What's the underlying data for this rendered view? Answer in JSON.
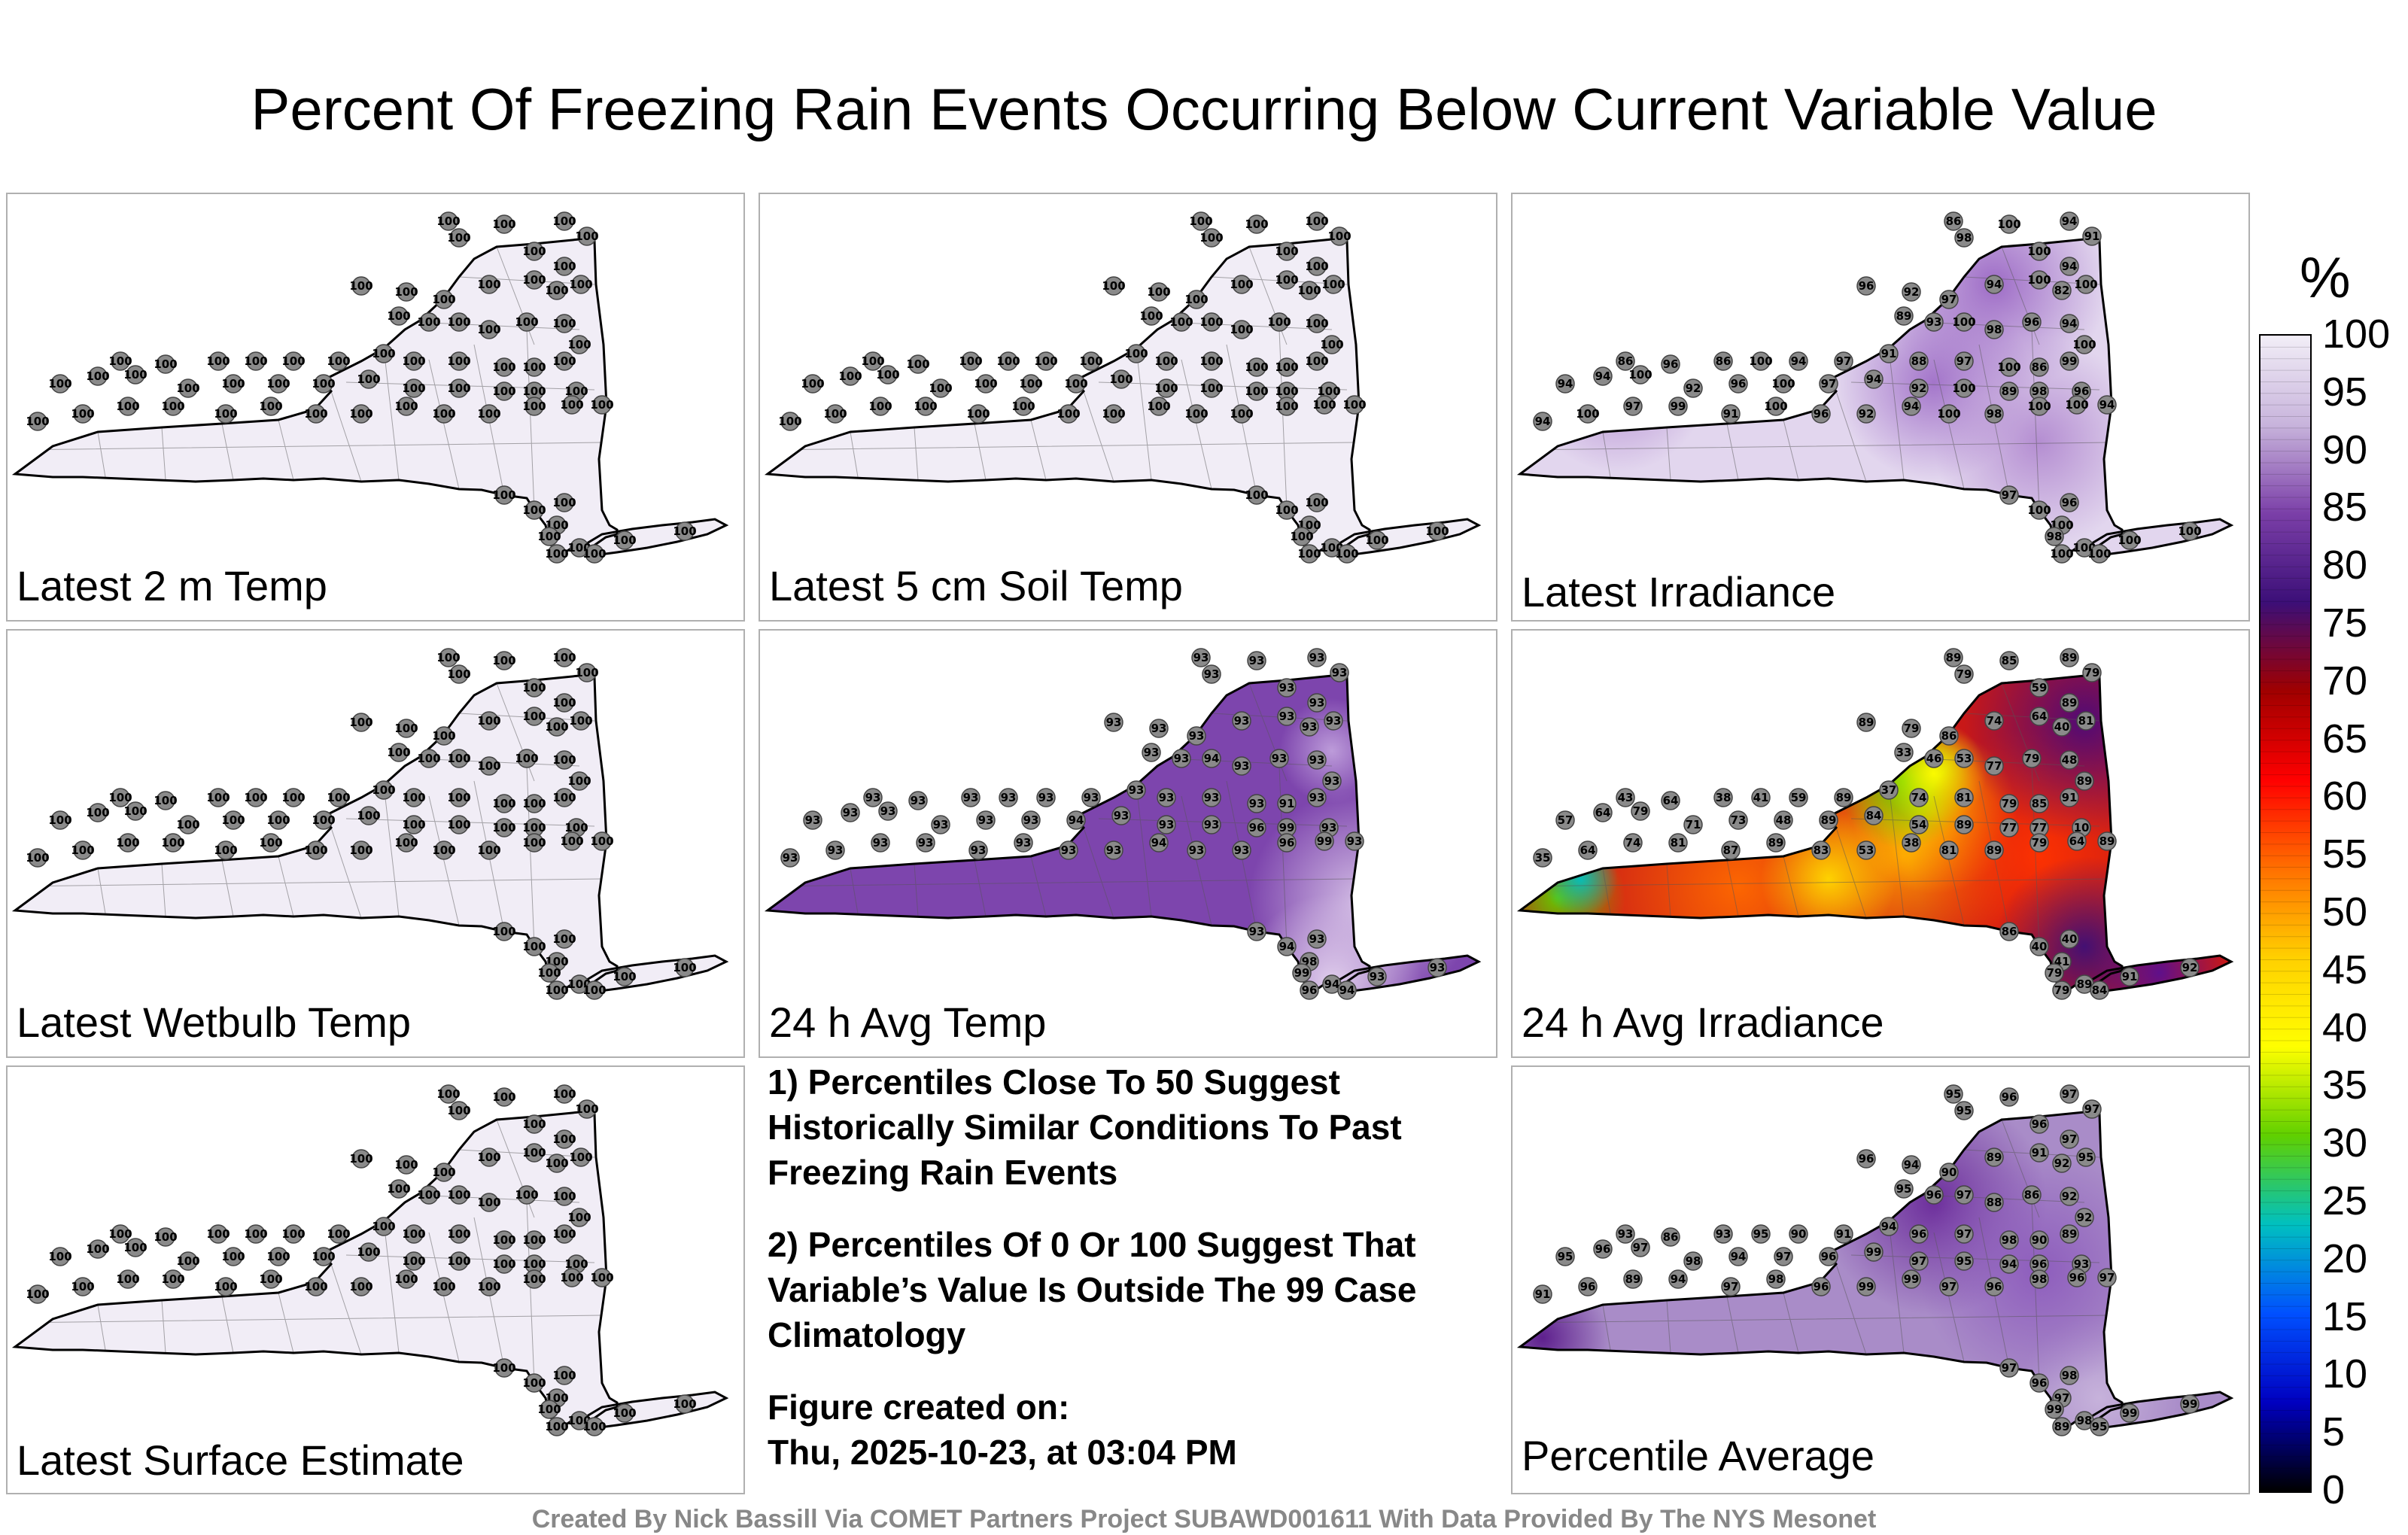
{
  "title": "Percent Of Freezing Rain Events Occurring Below Current Variable Value",
  "colorbar": {
    "unit": "%",
    "ticks": [
      "100",
      "95",
      "90",
      "85",
      "80",
      "75",
      "70",
      "65",
      "60",
      "55",
      "50",
      "45",
      "40",
      "35",
      "30",
      "25",
      "20",
      "15",
      "10",
      "5",
      "0"
    ],
    "colors": [
      "#f2eef7",
      "#c8b4dc",
      "#7b3fa8",
      "#3c0f78",
      "#a00000",
      "#ff0000",
      "#ff7000",
      "#ffd000",
      "#ffff00",
      "#60d000",
      "#00c0c0",
      "#0050ff",
      "#0000c0",
      "#000000"
    ]
  },
  "panels": [
    {
      "label": "Latest 2 m Temp",
      "fill": "#f1edf6",
      "cvalue": 100,
      "values": [
        100,
        100,
        100,
        100,
        100,
        100,
        100,
        100,
        100,
        100,
        100,
        100,
        100,
        100,
        100,
        100,
        100,
        100,
        100,
        100,
        100,
        100,
        100,
        100,
        100,
        100,
        100,
        100,
        100,
        100,
        100,
        100,
        100,
        100,
        100,
        100,
        100,
        100,
        100,
        100,
        100,
        100,
        100,
        100,
        100,
        100,
        100,
        100,
        100,
        100,
        100,
        100,
        100,
        100,
        100,
        100,
        100,
        100,
        100,
        100,
        100,
        100,
        100,
        100,
        100,
        100,
        100,
        100,
        100,
        100
      ]
    },
    {
      "label": "Latest 5 cm Soil Temp",
      "fill": "#f1edf6",
      "cvalue": 100,
      "values": [
        100,
        100,
        100,
        100,
        100,
        100,
        100,
        100,
        100,
        100,
        100,
        100,
        100,
        100,
        100,
        100,
        100,
        100,
        100,
        100,
        100,
        100,
        100,
        100,
        100,
        100,
        100,
        100,
        100,
        100,
        100,
        100,
        100,
        100,
        100,
        100,
        100,
        100,
        100,
        100,
        100,
        100,
        100,
        100,
        100,
        100,
        100,
        100,
        100,
        100,
        100,
        100,
        100,
        100,
        100,
        100,
        100,
        100,
        100,
        100,
        100,
        100,
        100,
        100,
        100,
        100,
        100,
        100,
        100,
        100
      ]
    },
    {
      "label": "Latest Irradiance",
      "fill": "#e2d6ee",
      "cvalue": 98,
      "values": [
        86,
        100,
        94,
        91,
        98,
        100,
        94,
        100,
        96,
        92,
        97,
        94,
        100,
        82,
        89,
        93,
        100,
        98,
        96,
        94,
        86,
        96,
        86,
        100,
        94,
        97,
        91,
        88,
        97,
        100,
        86,
        99,
        100,
        94,
        94,
        100,
        92,
        96,
        100,
        97,
        94,
        92,
        100,
        89,
        98,
        96,
        94,
        100,
        97,
        99,
        91,
        100,
        96,
        92,
        94,
        100,
        98,
        100,
        100,
        94,
        97,
        100,
        96,
        100,
        98,
        100,
        100,
        100,
        100,
        100
      ]
    },
    {
      "label": "Latest Wetbulb Temp",
      "fill": "#f1edf6",
      "cvalue": 100,
      "values": [
        100,
        100,
        100,
        100,
        100,
        100,
        100,
        100,
        100,
        100,
        100,
        100,
        100,
        100,
        100,
        100,
        100,
        100,
        100,
        100,
        100,
        100,
        100,
        100,
        100,
        100,
        100,
        100,
        100,
        100,
        100,
        100,
        100,
        100,
        100,
        100,
        100,
        100,
        100,
        100,
        100,
        100,
        100,
        100,
        100,
        100,
        100,
        100,
        100,
        100,
        100,
        100,
        100,
        100,
        100,
        100,
        100,
        100,
        100,
        100,
        100,
        100,
        100,
        100,
        100,
        100,
        100,
        100,
        100,
        100
      ]
    },
    {
      "label": "24 h Avg Temp",
      "fill": "#7d45ad",
      "cvalue": 93,
      "values": [
        93,
        93,
        93,
        93,
        93,
        93,
        93,
        93,
        93,
        93,
        93,
        93,
        93,
        93,
        93,
        93,
        94,
        93,
        93,
        93,
        93,
        93,
        93,
        93,
        93,
        93,
        93,
        93,
        93,
        93,
        91,
        93,
        93,
        93,
        93,
        93,
        93,
        93,
        93,
        94,
        93,
        93,
        93,
        96,
        99,
        93,
        93,
        93,
        93,
        93,
        93,
        93,
        93,
        93,
        94,
        93,
        93,
        96,
        99,
        93,
        93,
        94,
        93,
        98,
        99,
        94,
        94,
        96,
        93,
        93
      ]
    },
    {
      "label": "24 h Avg Irradiance",
      "fill": "#c81818",
      "cvalue": 79,
      "values": [
        89,
        85,
        89,
        79,
        79,
        59,
        89,
        81,
        89,
        79,
        86,
        74,
        64,
        40,
        33,
        46,
        53,
        77,
        79,
        48,
        43,
        64,
        38,
        41,
        59,
        89,
        37,
        74,
        81,
        79,
        85,
        91,
        89,
        57,
        64,
        79,
        71,
        73,
        48,
        89,
        84,
        54,
        89,
        77,
        77,
        10,
        35,
        64,
        74,
        81,
        87,
        89,
        83,
        53,
        38,
        81,
        89,
        79,
        64,
        89,
        86,
        40,
        40,
        41,
        79,
        89,
        84,
        79,
        91,
        92
      ]
    },
    {
      "label": "Percentile Average",
      "fill": "#a98cc8",
      "cvalue": 96,
      "values": [
        95,
        96,
        97,
        97,
        95,
        96,
        97,
        95,
        96,
        94,
        90,
        89,
        91,
        92,
        95,
        96,
        97,
        88,
        86,
        92,
        93,
        86,
        93,
        95,
        90,
        91,
        94,
        96,
        97,
        98,
        90,
        89,
        92,
        95,
        96,
        97,
        98,
        94,
        97,
        96,
        99,
        97,
        95,
        94,
        96,
        93,
        91,
        96,
        89,
        94,
        97,
        98,
        96,
        99,
        99,
        97,
        96,
        98,
        96,
        97,
        97,
        96,
        98,
        97,
        99,
        98,
        95,
        89,
        99,
        99
      ]
    }
  ],
  "notes": {
    "note1": "1) Percentiles Close To 50 Suggest Historically Similar Conditions To Past Freezing Rain Events",
    "note2": "2) Percentiles Of 0 Or 100 Suggest That Variable’s Value Is Outside The 99 Case Climatology",
    "created_label": "Figure created on:",
    "created_date": "Thu, 2025-10-23, at 03:04 PM"
  },
  "footer": "Created By Nick Bassill Via COMET Partners Project SUBAWD001611 With Data Provided By The NYS Mesonet"
}
